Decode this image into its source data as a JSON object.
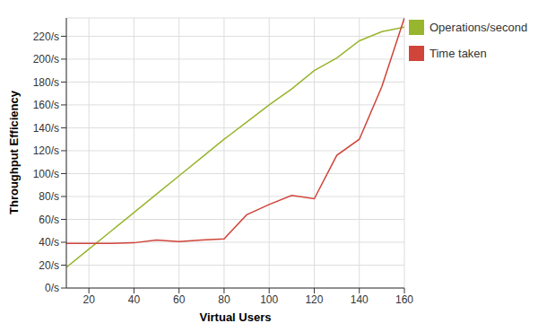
{
  "chart_data": {
    "type": "line",
    "x_label": "Virtual Users",
    "y_label": "Throughput Efficiency",
    "x": [
      10,
      20,
      30,
      40,
      50,
      60,
      70,
      80,
      90,
      100,
      110,
      120,
      130,
      140,
      150,
      160
    ],
    "series": [
      {
        "name": "Operations/second",
        "color": "#97b52d",
        "values": [
          18,
          34,
          50,
          66,
          82,
          98,
          114,
          130,
          145,
          160,
          174,
          190,
          201,
          216,
          224,
          228
        ]
      },
      {
        "name": "Time taken",
        "color": "#d0443a",
        "values": [
          39,
          39,
          39,
          39.5,
          42,
          40.5,
          42,
          43,
          64,
          73,
          81,
          78,
          116,
          130,
          176,
          236
        ]
      }
    ],
    "xlim": [
      10,
      160
    ],
    "xticks": [
      20,
      40,
      60,
      80,
      100,
      120,
      140,
      160
    ],
    "ylim": [
      0,
      236
    ],
    "yticks": [
      {
        "value": 0,
        "label": "0/s"
      },
      {
        "value": 20,
        "label": "20/s"
      },
      {
        "value": 40,
        "label": "40/s"
      },
      {
        "value": 60,
        "label": "60/s"
      },
      {
        "value": 80,
        "label": "80/s"
      },
      {
        "value": 100,
        "label": "100/s"
      },
      {
        "value": 120,
        "label": "120/s"
      },
      {
        "value": 140,
        "label": "140/s"
      },
      {
        "value": 160,
        "label": "160/s"
      },
      {
        "value": 180,
        "label": "180/s"
      },
      {
        "value": 200,
        "label": "200/s"
      },
      {
        "value": 220,
        "label": "220/s"
      }
    ],
    "grid": true,
    "legend": "right"
  }
}
